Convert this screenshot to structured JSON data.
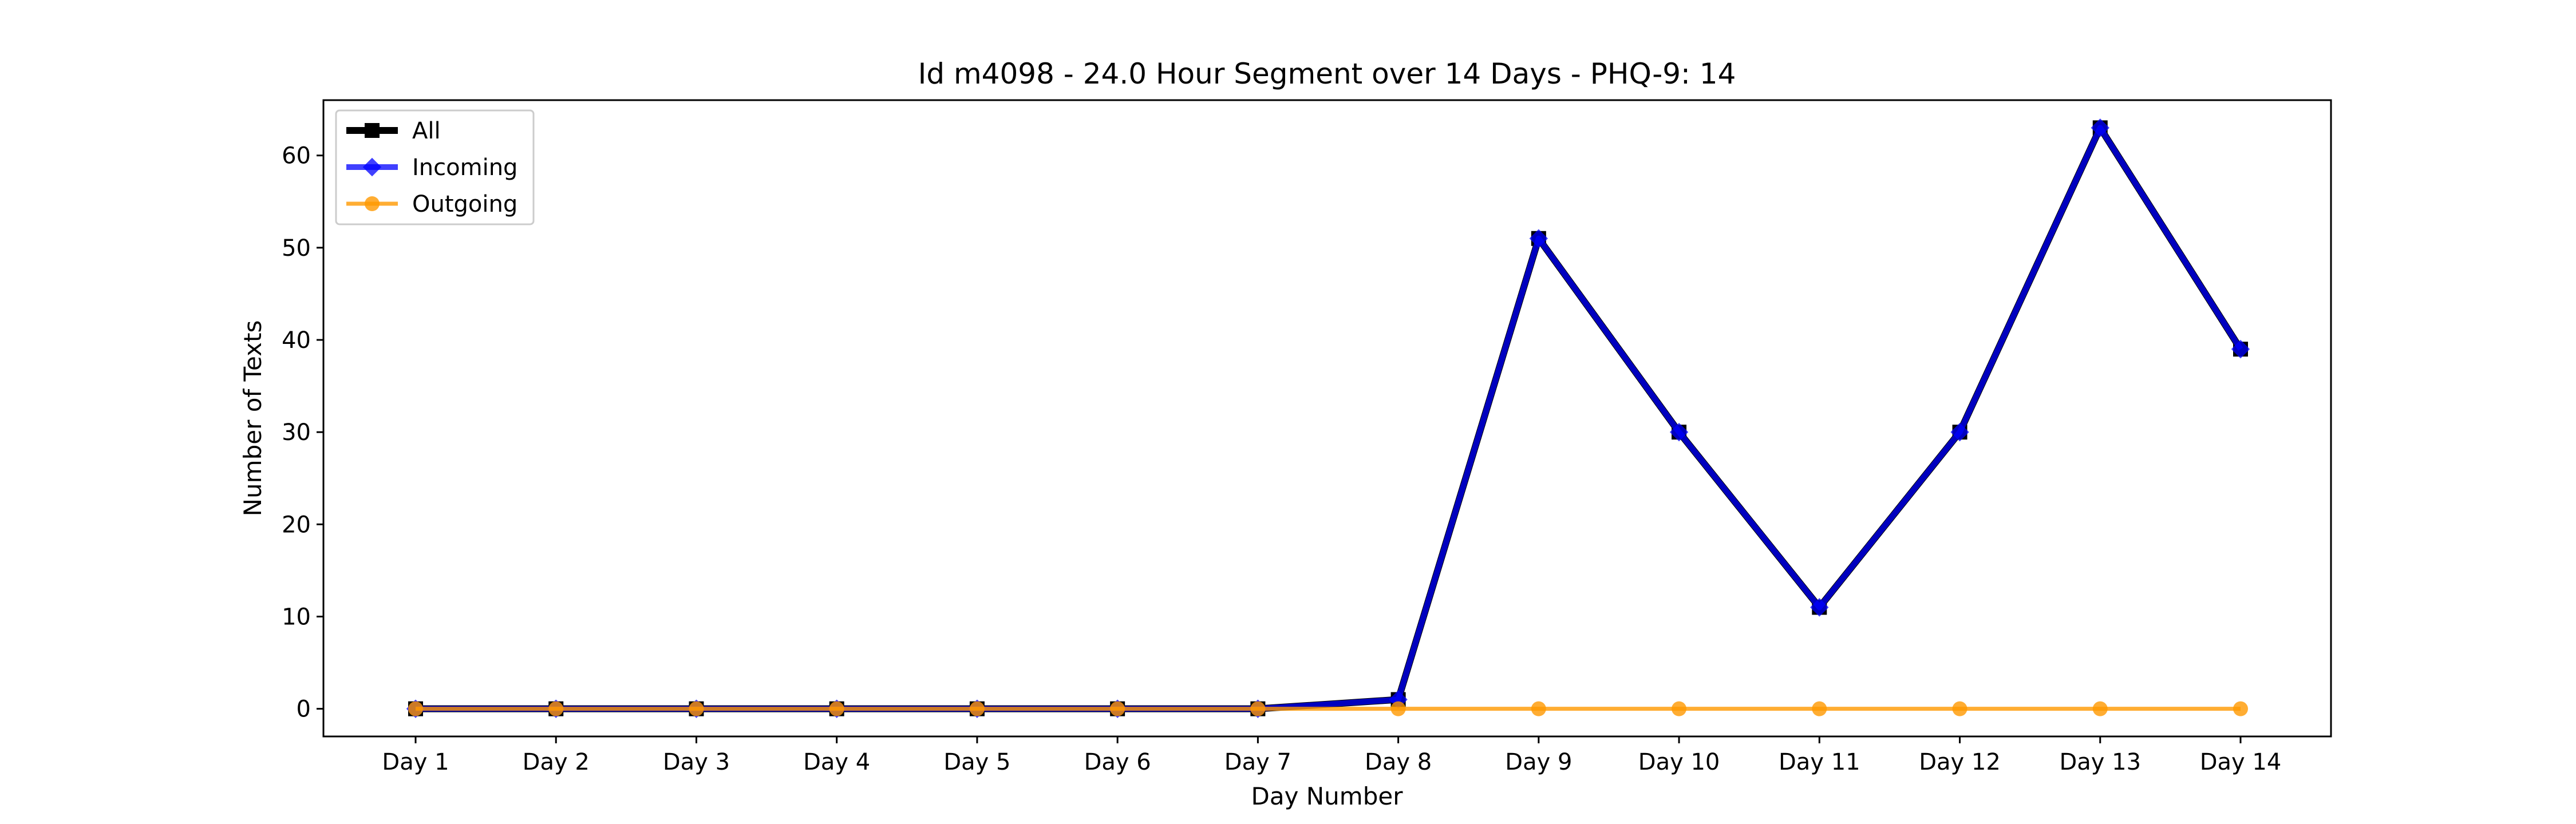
{
  "chart_data": {
    "type": "line",
    "title": "Id m4098 - 24.0 Hour Segment over 14 Days - PHQ-9: 14",
    "xlabel": "Day Number",
    "ylabel": "Number of Texts",
    "categories": [
      "Day 1",
      "Day 2",
      "Day 3",
      "Day 4",
      "Day 5",
      "Day 6",
      "Day 7",
      "Day 8",
      "Day 9",
      "Day 10",
      "Day 11",
      "Day 12",
      "Day 13",
      "Day 14"
    ],
    "ylim": [
      -3,
      66
    ],
    "yticks": [
      0,
      10,
      20,
      30,
      40,
      50,
      60
    ],
    "grid": false,
    "legend_position": "top-left",
    "series": [
      {
        "name": "All",
        "color": "#000000",
        "marker": "square",
        "values": [
          0,
          0,
          0,
          0,
          0,
          0,
          0,
          1,
          51,
          30,
          11,
          30,
          63,
          39
        ]
      },
      {
        "name": "Incoming",
        "color": "#0000ff",
        "marker": "diamond",
        "values": [
          0,
          0,
          0,
          0,
          0,
          0,
          0,
          1,
          51,
          30,
          11,
          30,
          63,
          39
        ]
      },
      {
        "name": "Outgoing",
        "color": "#ff9900",
        "marker": "circle",
        "values": [
          0,
          0,
          0,
          0,
          0,
          0,
          0,
          0,
          0,
          0,
          0,
          0,
          0,
          0
        ]
      }
    ]
  }
}
